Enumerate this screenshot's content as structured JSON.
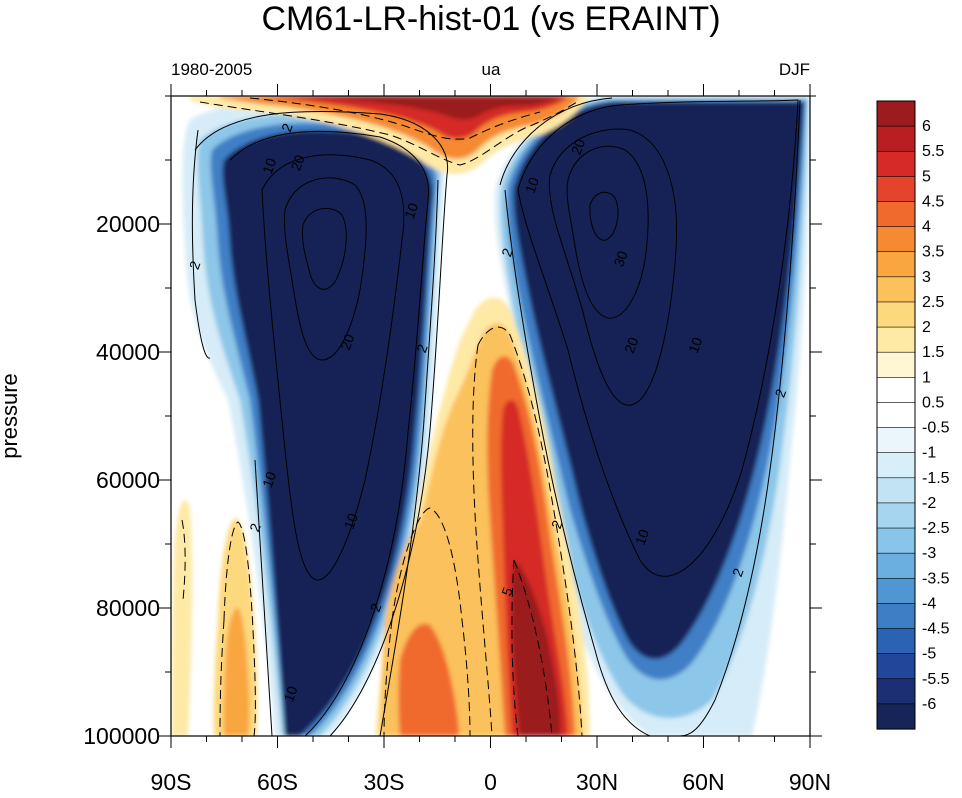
{
  "chart_data": {
    "type": "contour",
    "title": "CM61-LR-hist-01  (vs ERAINT)",
    "left_string": "1980-2005",
    "center_string": "ua",
    "right_string": "DJF",
    "ylabel": "pressure",
    "xlabel": "",
    "xlim": [
      -90,
      90
    ],
    "ylim": [
      100000,
      0
    ],
    "x_ticks": [
      {
        "value": -90,
        "label": "90S"
      },
      {
        "value": -60,
        "label": "60S"
      },
      {
        "value": -30,
        "label": "30S"
      },
      {
        "value": 0,
        "label": "0"
      },
      {
        "value": 30,
        "label": "30N"
      },
      {
        "value": 60,
        "label": "60N"
      },
      {
        "value": 90,
        "label": "90N"
      }
    ],
    "y_ticks": [
      {
        "value": 20000,
        "label": "20000"
      },
      {
        "value": 40000,
        "label": "40000"
      },
      {
        "value": 60000,
        "label": "60000"
      },
      {
        "value": 80000,
        "label": "80000"
      },
      {
        "value": 100000,
        "label": "100000"
      }
    ],
    "colorbar": {
      "labels": [
        "6",
        "5.5",
        "5",
        "4.5",
        "4",
        "3.5",
        "3",
        "2.5",
        "2",
        "1.5",
        "1",
        "0.5",
        "-0.5",
        "-1",
        "-1.5",
        "-2",
        "-2.5",
        "-3",
        "-3.5",
        "-4",
        "-4.5",
        "-5",
        "-5.5",
        "-6"
      ],
      "colors": [
        "#9b1b1e",
        "#b81e22",
        "#d52a27",
        "#e4442b",
        "#f06a2e",
        "#f58a33",
        "#f9a640",
        "#fbc15b",
        "#fdd97e",
        "#fee9a5",
        "#fff6d3",
        "#ffffff",
        "#ffffff",
        "#ebf6fc",
        "#d8eef9",
        "#c1e3f4",
        "#a6d6ef",
        "#89c5e8",
        "#6aafdf",
        "#4f96d3",
        "#3d7ec5",
        "#2c62b2",
        "#21469a",
        "#1b2f72",
        "#172457"
      ]
    },
    "contour_labels": [
      {
        "text": "2",
        "lat": -57,
        "p": 5000
      },
      {
        "text": "10",
        "lat": -62,
        "p": 11000
      },
      {
        "text": "20",
        "lat": -54,
        "p": 10500
      },
      {
        "text": "10",
        "lat": -22,
        "p": 18000
      },
      {
        "text": "2",
        "lat": -83,
        "p": 26500
      },
      {
        "text": "20",
        "lat": -40,
        "p": 38500
      },
      {
        "text": "2",
        "lat": -19,
        "p": 39500
      },
      {
        "text": "10",
        "lat": -62,
        "p": 60000
      },
      {
        "text": "2",
        "lat": -66,
        "p": 67500
      },
      {
        "text": "10",
        "lat": -39,
        "p": 66500
      },
      {
        "text": "2",
        "lat": -32,
        "p": 80000
      },
      {
        "text": "10",
        "lat": -56,
        "p": 93500
      },
      {
        "text": "2",
        "lat": 5,
        "p": 24500
      },
      {
        "text": "10",
        "lat": 12,
        "p": 14000
      },
      {
        "text": "20",
        "lat": 25,
        "p": 8000
      },
      {
        "text": "30",
        "lat": 37,
        "p": 25500
      },
      {
        "text": "20",
        "lat": 40,
        "p": 39000
      },
      {
        "text": "10",
        "lat": 58,
        "p": 39000
      },
      {
        "text": "2",
        "lat": 82,
        "p": 46500
      },
      {
        "text": "2",
        "lat": 19,
        "p": 67000
      },
      {
        "text": "10",
        "lat": 43,
        "p": 69000
      },
      {
        "text": "2",
        "lat": 70,
        "p": 74500
      },
      {
        "text": "5",
        "lat": 5,
        "p": 77500
      }
    ]
  }
}
